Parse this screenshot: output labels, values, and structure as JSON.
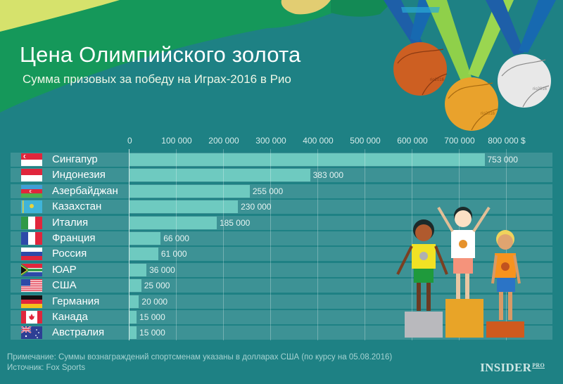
{
  "header": {
    "title": "Цена Олимпийского золота",
    "subtitle": "Сумма призовых за победу на Играх-2016 в Рио"
  },
  "axis": {
    "ticks": [
      "0",
      "100 000",
      "200 000",
      "300 000",
      "400 000",
      "500 000",
      "600 000",
      "700 000",
      "800 000 $"
    ]
  },
  "rows": [
    {
      "country": "Сингапур",
      "flag": "singapore-flag",
      "value": 753000,
      "label": "753 000"
    },
    {
      "country": "Индонезия",
      "flag": "indonesia-flag",
      "value": 383000,
      "label": "383 000"
    },
    {
      "country": "Азербайджан",
      "flag": "azerbaijan-flag",
      "value": 255000,
      "label": "255 000"
    },
    {
      "country": "Казахстан",
      "flag": "kazakhstan-flag",
      "value": 230000,
      "label": "230 000"
    },
    {
      "country": "Италия",
      "flag": "italy-flag",
      "value": 185000,
      "label": "185 000"
    },
    {
      "country": "Франция",
      "flag": "france-flag",
      "value": 66000,
      "label": "66 000"
    },
    {
      "country": "Россия",
      "flag": "russia-flag",
      "value": 61000,
      "label": "61 000"
    },
    {
      "country": "ЮАР",
      "flag": "south-africa-flag",
      "value": 36000,
      "label": "36 000"
    },
    {
      "country": "США",
      "flag": "usa-flag",
      "value": 25000,
      "label": "25 000"
    },
    {
      "country": "Германия",
      "flag": "germany-flag",
      "value": 20000,
      "label": "20 000"
    },
    {
      "country": "Канада",
      "flag": "canada-flag",
      "value": 15000,
      "label": "15 000"
    },
    {
      "country": "Австралия",
      "flag": "australia-flag",
      "value": 15000,
      "label": "15 000"
    }
  ],
  "footer": {
    "note": "Примечание: Суммы вознаграждений спортсменам указаны в долларах США (по курсу на 05.08.2016)",
    "source": "Источник: Fox Sports",
    "logo_main": "INSIDER",
    "logo_sup": "PRO"
  },
  "medals": {
    "ribbon_text": "rio2016"
  },
  "colors": {
    "background": "#1e8184",
    "bar": "#6ecac0",
    "row": "#3f9497",
    "wave_green": "#16985a",
    "wave_yellow": "#d9e36a",
    "gold": "#e9a22c",
    "silver": "#e6e6e6",
    "bronze": "#cf5f23"
  },
  "chart_data": {
    "type": "bar",
    "orientation": "horizontal",
    "title": "Цена Олимпийского золота",
    "subtitle": "Сумма призовых за победу на Играх-2016 в Рио",
    "categories": [
      "Сингапур",
      "Индонезия",
      "Азербайджан",
      "Казахстан",
      "Италия",
      "Франция",
      "Россия",
      "ЮАР",
      "США",
      "Германия",
      "Канада",
      "Австралия"
    ],
    "values": [
      753000,
      383000,
      255000,
      230000,
      185000,
      66000,
      61000,
      36000,
      25000,
      20000,
      15000,
      15000
    ],
    "xlabel": "$",
    "ylabel": "",
    "xlim": [
      0,
      800000
    ],
    "x_ticks": [
      0,
      100000,
      200000,
      300000,
      400000,
      500000,
      600000,
      700000,
      800000
    ],
    "grid": true,
    "data_labels": true,
    "annotations": [
      "Примечание: Суммы вознаграждений спортсменам указаны в долларах США (по курсу на 05.08.2016)",
      "Источник: Fox Sports"
    ]
  }
}
